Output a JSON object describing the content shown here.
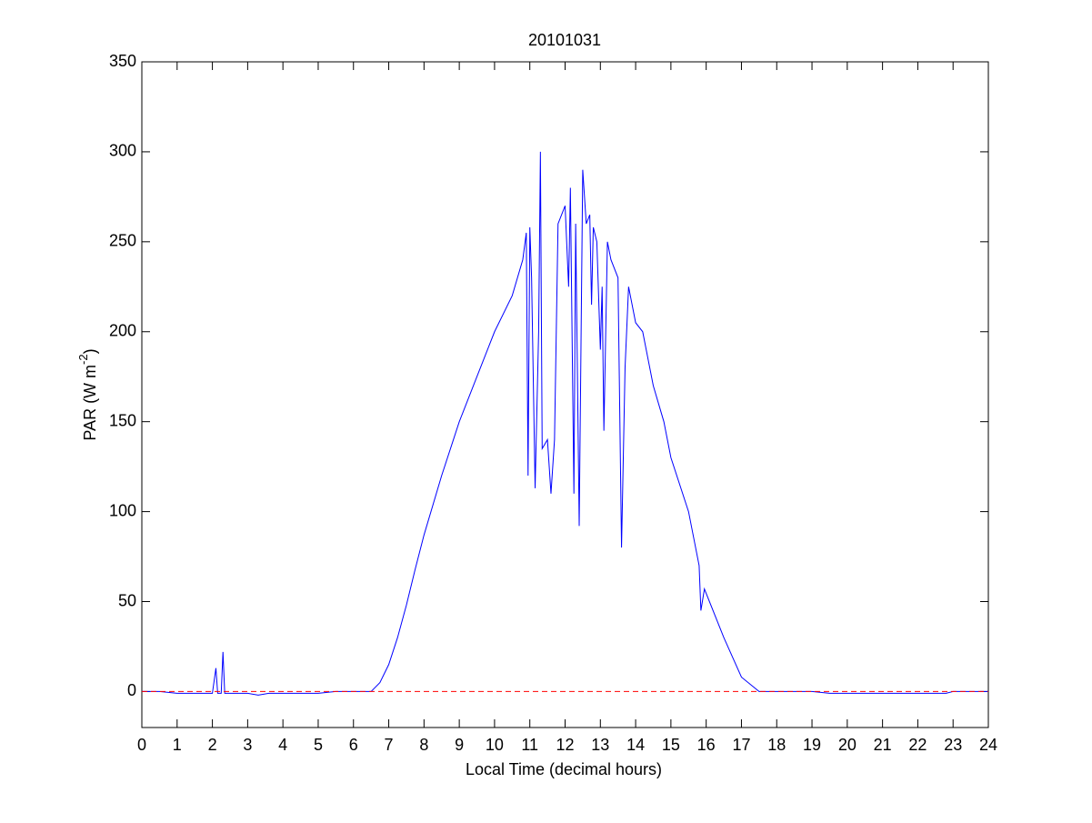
{
  "chart_data": {
    "type": "line",
    "title": "20101031",
    "xlabel": "Local Time (decimal hours)",
    "ylabel": [
      "PAR (W m",
      "-2",
      ")"
    ],
    "x": [
      0,
      0.5,
      1,
      1.5,
      2,
      2.1,
      2.15,
      2.25,
      2.3,
      2.35,
      2.5,
      3,
      3.3,
      3.6,
      4,
      4.5,
      5,
      5.5,
      6,
      6.5,
      6.75,
      7,
      7.25,
      7.5,
      7.75,
      8,
      8.5,
      9,
      9.5,
      10,
      10.5,
      10.8,
      10.9,
      10.95,
      11.0,
      11.05,
      11.15,
      11.25,
      11.3,
      11.35,
      11.5,
      11.6,
      11.7,
      11.8,
      11.9,
      12.0,
      12.1,
      12.15,
      12.25,
      12.3,
      12.4,
      12.5,
      12.6,
      12.7,
      12.75,
      12.8,
      12.9,
      13.0,
      13.05,
      13.1,
      13.2,
      13.3,
      13.5,
      13.6,
      13.7,
      13.8,
      14.0,
      14.2,
      14.5,
      14.8,
      15.0,
      15.5,
      15.8,
      15.85,
      15.95,
      16.5,
      17.0,
      17.5,
      18,
      19,
      19.5,
      20,
      21,
      22,
      22.8,
      23,
      24
    ],
    "series": [
      {
        "name": "PAR",
        "color": "#0000ff",
        "values": [
          0,
          0,
          -1,
          -1,
          -1,
          13,
          -1,
          -1,
          22,
          -1,
          -1,
          -1,
          -2,
          -1,
          -1,
          -1,
          -1,
          0,
          0,
          0,
          5,
          15,
          30,
          48,
          68,
          87,
          120,
          150,
          175,
          200,
          220,
          240,
          255,
          120,
          258,
          230,
          113,
          200,
          300,
          135,
          140,
          110,
          140,
          260,
          265,
          270,
          225,
          280,
          110,
          260,
          92,
          290,
          260,
          265,
          215,
          258,
          250,
          190,
          225,
          145,
          250,
          240,
          230,
          80,
          180,
          225,
          205,
          200,
          170,
          150,
          130,
          100,
          70,
          45,
          57,
          30,
          8,
          0,
          0,
          0,
          -1,
          -1,
          -1,
          -1,
          -1,
          0,
          0
        ]
      }
    ],
    "hline": {
      "value": 0,
      "color": "#ff0000",
      "dashed": true
    },
    "xlim": [
      0,
      24
    ],
    "ylim": [
      -20,
      350
    ],
    "xticks": [
      0,
      1,
      2,
      3,
      4,
      5,
      6,
      7,
      8,
      9,
      10,
      11,
      12,
      13,
      14,
      15,
      16,
      17,
      18,
      19,
      20,
      21,
      22,
      23,
      24
    ],
    "yticks": [
      0,
      50,
      100,
      150,
      200,
      250,
      300,
      350
    ],
    "grid": false
  }
}
